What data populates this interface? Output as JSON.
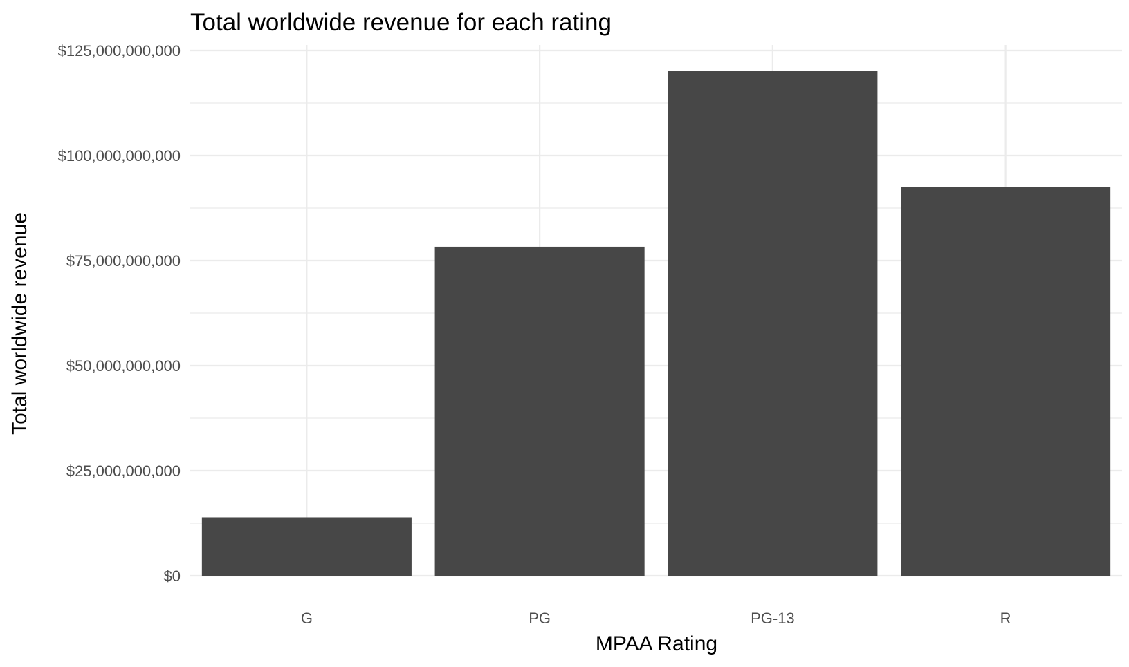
{
  "chart_data": {
    "type": "bar",
    "title": "Total worldwide revenue for each rating",
    "xlabel": "MPAA Rating",
    "ylabel": "Total worldwide revenue",
    "categories": [
      "G",
      "PG",
      "PG-13",
      "R"
    ],
    "values": [
      13900000000,
      78300000000,
      120100000000,
      92500000000
    ],
    "ylim": [
      0,
      127000000000
    ],
    "y_ticks": [
      0,
      25000000000,
      50000000000,
      75000000000,
      100000000000,
      125000000000
    ],
    "y_tick_labels": [
      "$0",
      "$25,000,000,000",
      "$50,000,000,000",
      "$75,000,000,000",
      "$100,000,000,000",
      "$125,000,000,000"
    ],
    "grid": true,
    "legend": "none",
    "bar_color": "#474747",
    "grid_color": "#ebebeb"
  }
}
